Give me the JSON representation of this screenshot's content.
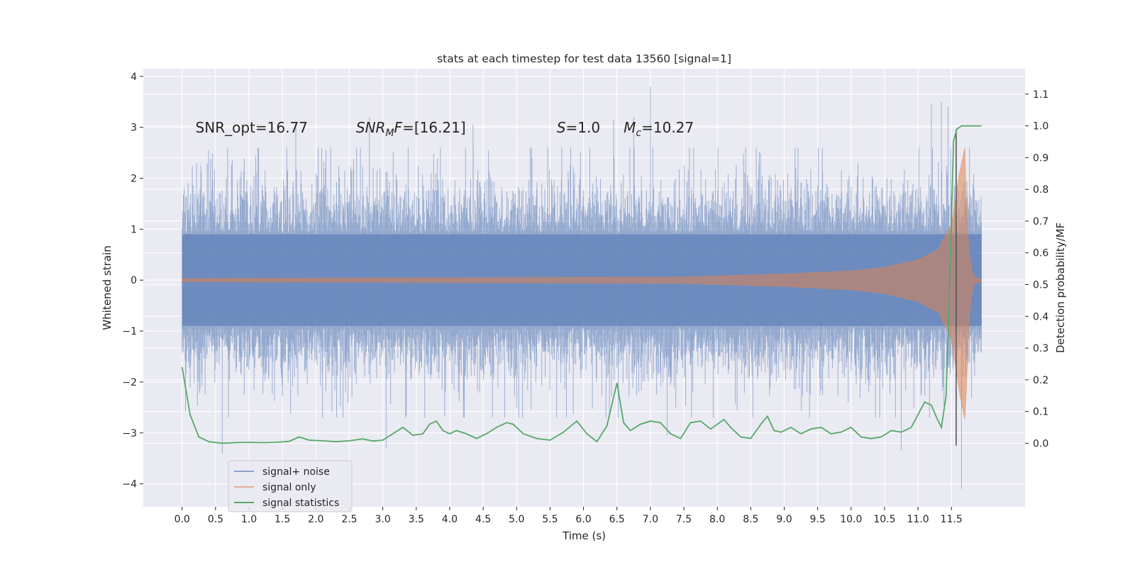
{
  "chart_data": {
    "type": "line",
    "title": "stats at each timestep for test data 13560 [signal=1]",
    "xlabel": "Time (s)",
    "ylabel": "Whitened strain",
    "y2label": "Detection probability/MF",
    "xlim": [
      -0.58,
      12.6
    ],
    "ylim": [
      -4.45,
      4.15
    ],
    "y2lim": [
      -0.2,
      1.18
    ],
    "x_ticks": [
      0.0,
      0.5,
      1.0,
      1.5,
      2.0,
      2.5,
      3.0,
      3.5,
      4.0,
      4.5,
      5.0,
      5.5,
      6.0,
      6.5,
      7.0,
      7.5,
      8.0,
      8.5,
      9.0,
      9.5,
      10.0,
      10.5,
      11.0,
      11.5
    ],
    "x_tick_labels": [
      "0.0",
      "0.5",
      "1.0",
      "1.5",
      "2.0",
      "2.5",
      "3.0",
      "3.5",
      "4.0",
      "4.5",
      "5.0",
      "5.5",
      "6.0",
      "6.5",
      "7.0",
      "7.5",
      "8.0",
      "8.5",
      "9.0",
      "9.5",
      "10.0",
      "10.5",
      "11.0",
      "11.5"
    ],
    "y_ticks": [
      -4,
      -3,
      -2,
      -1,
      0,
      1,
      2,
      3,
      4
    ],
    "y_tick_labels": [
      "−4",
      "−3",
      "−2",
      "−1",
      "0",
      "1",
      "2",
      "3",
      "4"
    ],
    "y2_ticks": [
      0.0,
      0.1,
      0.2,
      0.3,
      0.4,
      0.5,
      0.6,
      0.7,
      0.8,
      0.9,
      1.0,
      1.1
    ],
    "y2_tick_labels": [
      "0.0",
      "0.1",
      "0.2",
      "0.3",
      "0.4",
      "0.5",
      "0.6",
      "0.7",
      "0.8",
      "0.9",
      "1.0",
      "1.1"
    ],
    "annotations": [
      {
        "parts": [
          {
            "t": "SNR_opt=16.77"
          }
        ],
        "x": 0.2,
        "y": 2.9
      },
      {
        "parts": [
          {
            "t": "SNR",
            "i": true
          },
          {
            "t": "M",
            "i": true,
            "sub": true
          },
          {
            "t": "F",
            "i": true
          },
          {
            "t": "=[16.21]"
          }
        ],
        "x": 2.6,
        "y": 2.9
      },
      {
        "parts": [
          {
            "t": "S",
            "i": true
          },
          {
            "t": "=1.0"
          }
        ],
        "x": 5.6,
        "y": 2.9
      },
      {
        "parts": [
          {
            "t": "M",
            "i": true
          },
          {
            "t": "c",
            "i": true,
            "sub": true
          },
          {
            "t": "=10.27"
          }
        ],
        "x": 6.6,
        "y": 2.9
      }
    ],
    "series": [
      {
        "name": "signal+ noise",
        "color": "#4c72b0",
        "axis": "left",
        "style": "dense noise trace",
        "t_start": 0.0,
        "t_end": 11.95,
        "typical_envelope": [
          -1.4,
          1.4
        ],
        "peaks": [
          {
            "x": 0.28,
            "y": 2.25
          },
          {
            "x": 0.6,
            "y": -3.4
          },
          {
            "x": 0.75,
            "y": 2.35
          },
          {
            "x": 1.7,
            "y": 3.05
          },
          {
            "x": 2.8,
            "y": 3.2
          },
          {
            "x": 3.05,
            "y": -3.3
          },
          {
            "x": 4.35,
            "y": 3.05
          },
          {
            "x": 6.45,
            "y": 3.15
          },
          {
            "x": 6.75,
            "y": 3.2
          },
          {
            "x": 7.0,
            "y": 3.8
          },
          {
            "x": 7.25,
            "y": -3.05
          },
          {
            "x": 10.75,
            "y": -3.35
          },
          {
            "x": 11.2,
            "y": 3.45
          },
          {
            "x": 11.35,
            "y": 3.5
          },
          {
            "x": 11.45,
            "y": 3.4
          },
          {
            "x": 11.65,
            "y": -4.1
          }
        ]
      },
      {
        "name": "signal only",
        "color": "#dd8452",
        "axis": "left",
        "style": "chirp",
        "t_start": 0.0,
        "t_merger": 11.7,
        "t_end": 11.95,
        "amplitude_at": [
          [
            0.0,
            0.03
          ],
          [
            7.5,
            0.06
          ],
          [
            9.0,
            0.12
          ],
          [
            10.0,
            0.18
          ],
          [
            10.5,
            0.25
          ],
          [
            11.0,
            0.4
          ],
          [
            11.3,
            0.6
          ],
          [
            11.5,
            1.1
          ],
          [
            11.62,
            2.1
          ],
          [
            11.7,
            2.6
          ]
        ]
      },
      {
        "name": "signal statistics",
        "color": "#55a868",
        "axis": "right",
        "x": [
          0.0,
          0.12,
          0.25,
          0.4,
          0.6,
          0.8,
          1.0,
          1.2,
          1.4,
          1.6,
          1.75,
          1.9,
          2.1,
          2.3,
          2.5,
          2.7,
          2.85,
          3.0,
          3.15,
          3.3,
          3.45,
          3.6,
          3.7,
          3.8,
          3.9,
          4.0,
          4.1,
          4.25,
          4.4,
          4.55,
          4.7,
          4.85,
          4.95,
          5.1,
          5.3,
          5.5,
          5.7,
          5.9,
          6.05,
          6.2,
          6.35,
          6.5,
          6.6,
          6.7,
          6.85,
          7.0,
          7.15,
          7.3,
          7.45,
          7.6,
          7.75,
          7.9,
          8.0,
          8.1,
          8.2,
          8.35,
          8.5,
          8.65,
          8.75,
          8.85,
          8.95,
          9.1,
          9.25,
          9.4,
          9.55,
          9.7,
          9.85,
          10.0,
          10.15,
          10.3,
          10.45,
          10.6,
          10.75,
          10.9,
          11.0,
          11.1,
          11.2,
          11.28,
          11.35,
          11.42,
          11.48,
          11.53,
          11.58,
          11.65,
          11.75,
          11.85,
          11.95
        ],
        "values": [
          0.24,
          0.09,
          0.02,
          0.005,
          0.0,
          0.002,
          0.003,
          0.002,
          0.003,
          0.006,
          0.02,
          0.01,
          0.008,
          0.005,
          0.008,
          0.014,
          0.007,
          0.01,
          0.03,
          0.05,
          0.025,
          0.03,
          0.06,
          0.07,
          0.04,
          0.03,
          0.04,
          0.03,
          0.015,
          0.03,
          0.05,
          0.065,
          0.06,
          0.03,
          0.015,
          0.01,
          0.035,
          0.07,
          0.03,
          0.005,
          0.055,
          0.19,
          0.065,
          0.04,
          0.06,
          0.07,
          0.065,
          0.03,
          0.015,
          0.065,
          0.07,
          0.045,
          0.06,
          0.075,
          0.05,
          0.02,
          0.015,
          0.06,
          0.085,
          0.04,
          0.035,
          0.05,
          0.03,
          0.045,
          0.05,
          0.03,
          0.035,
          0.05,
          0.02,
          0.015,
          0.02,
          0.04,
          0.035,
          0.05,
          0.09,
          0.13,
          0.12,
          0.08,
          0.05,
          0.15,
          0.55,
          0.95,
          0.99,
          1.0,
          1.0,
          1.0,
          1.0
        ]
      }
    ],
    "vertical_lines": [
      {
        "x": 11.57,
        "y": [
          -3.25,
          2.95
        ],
        "color": "#555555"
      }
    ],
    "legend": {
      "placement": "lower-left",
      "entries": [
        "signal+ noise",
        "signal only",
        "signal statistics"
      ]
    },
    "grid": true,
    "background": "#eaeaf2",
    "colors": {
      "noise": "#4c72b0",
      "signal": "#dd8452",
      "stats": "#55a868",
      "vline": "#555555"
    }
  }
}
